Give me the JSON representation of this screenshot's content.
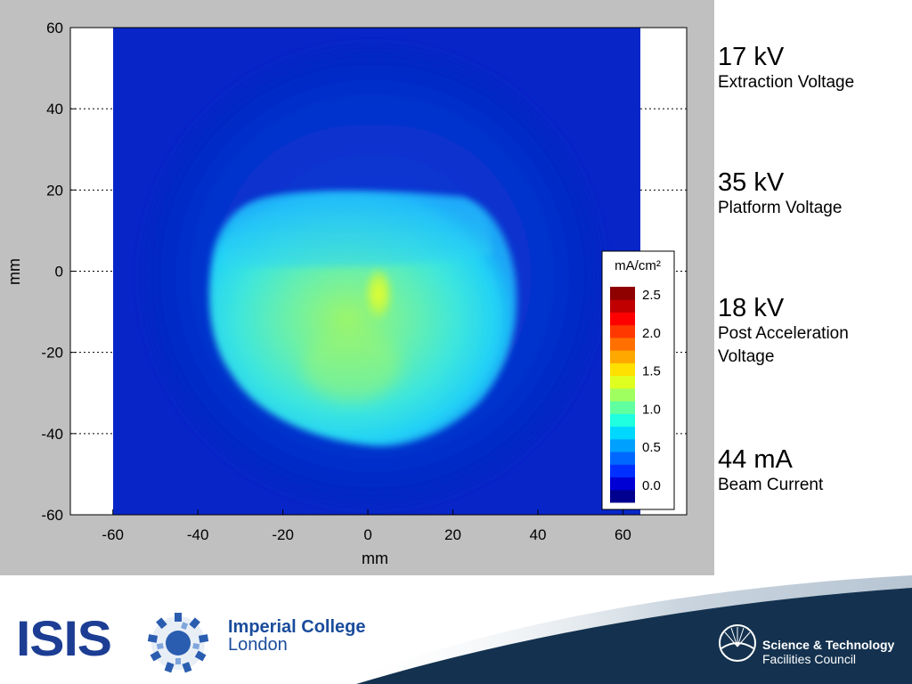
{
  "chart_data": {
    "type": "heatmap",
    "title": "",
    "xlabel": "mm",
    "ylabel": "mm",
    "xlim": [
      -70,
      75
    ],
    "ylim": [
      -60,
      60
    ],
    "x_ticks": [
      -60,
      -40,
      -20,
      0,
      20,
      40,
      60
    ],
    "y_ticks": [
      60,
      40,
      20,
      0,
      -20,
      -40,
      -60
    ],
    "colorbar": {
      "title": "mA/cm²",
      "ticks": [
        "2.5",
        "2.0",
        "1.5",
        "1.0",
        "0.5",
        "0.0"
      ],
      "range": [
        0.0,
        2.5
      ],
      "colors": [
        "#00008f",
        "#0000d5",
        "#0030ff",
        "#0068ff",
        "#00a0ff",
        "#00d8ff",
        "#20ffdf",
        "#60ffa0",
        "#a0ff60",
        "#dfff20",
        "#ffe000",
        "#ffa800",
        "#ff7000",
        "#ff3800",
        "#ff0000",
        "#c00000",
        "#8f0000"
      ]
    },
    "grid": "dotted",
    "beam": {
      "shape": "roughly circular spot, flattened top, cut on right side",
      "peak_location_mm": [
        0,
        -5
      ],
      "peak_value": 1.6,
      "body_value": 1.2,
      "background_value": 0.1
    }
  },
  "specs": [
    {
      "value": "17 kV",
      "label": "Extraction Voltage"
    },
    {
      "value": "35 kV",
      "label": "Platform Voltage"
    },
    {
      "value": "18 kV",
      "label": "Post Acceleration Voltage"
    },
    {
      "value": "44 mA",
      "label": "Beam Current"
    }
  ],
  "footer": {
    "isis_logo": "ISIS",
    "imperial_line1": "Imperial College",
    "imperial_line2": "London",
    "stfc_line1": "Science & Technology",
    "stfc_line2": "Facilities Council",
    "colors": {
      "isis": "#1c3d93",
      "imperial": "#1a4c9c",
      "stfc_band": "#14324f"
    }
  }
}
